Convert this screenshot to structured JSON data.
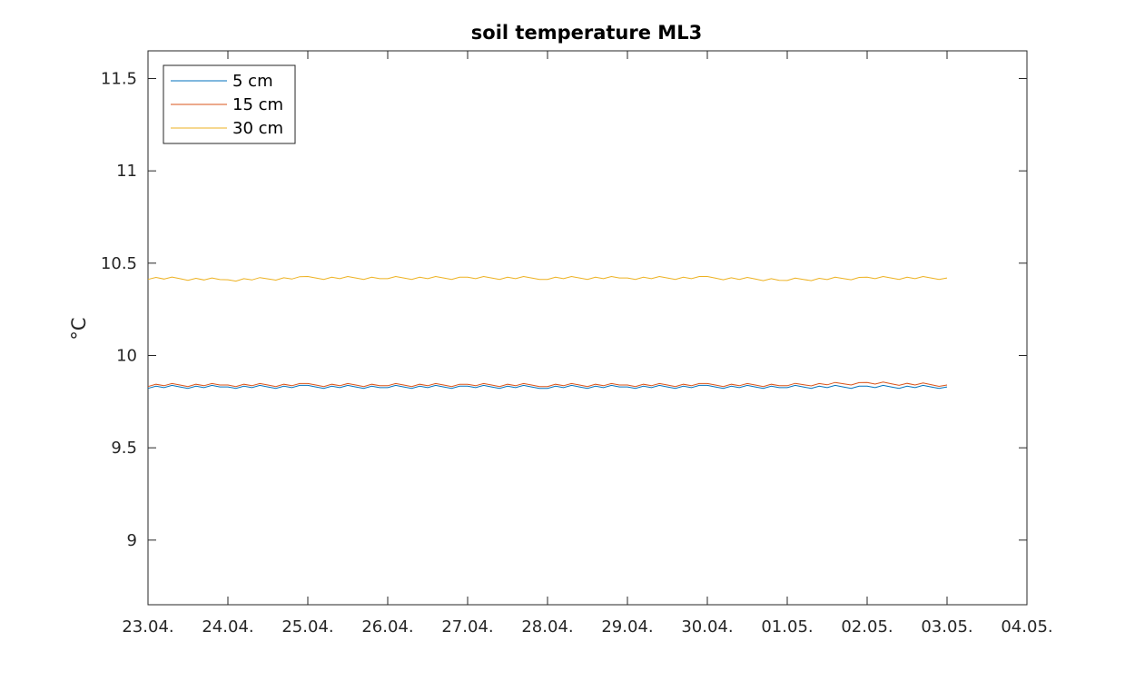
{
  "chart_data": {
    "type": "line",
    "title": "soil temperature ML3",
    "xlabel": "",
    "ylabel": "°C",
    "x_tick_labels": [
      "23.04.",
      "24.04.",
      "25.04.",
      "26.04.",
      "27.04.",
      "28.04.",
      "29.04.",
      "30.04.",
      "01.05.",
      "02.05.",
      "03.05.",
      "04.05."
    ],
    "y_tick_labels": [
      "9",
      "9.5",
      "10",
      "10.5",
      "11",
      "11.5"
    ],
    "y_ticks": [
      9,
      9.5,
      10,
      10.5,
      11,
      11.5
    ],
    "xlim": [
      "23.04.",
      "04.05."
    ],
    "ylim": [
      8.65,
      11.65
    ],
    "grid": false,
    "legend_position": "top-left",
    "series": [
      {
        "name": "5 cm",
        "color": "#0072bd",
        "x": [
          "23.04.",
          "24.04.",
          "25.04.",
          "26.04.",
          "27.04.",
          "28.04.",
          "29.04.",
          "30.04.",
          "01.05.",
          "02.05.",
          "03.05."
        ],
        "y": [
          9.83,
          9.83,
          9.83,
          9.83,
          9.83,
          9.83,
          9.83,
          9.83,
          9.83,
          9.83,
          9.83
        ]
      },
      {
        "name": "15 cm",
        "color": "#d95319",
        "x": [
          "23.04.",
          "24.04.",
          "25.04.",
          "26.04.",
          "27.04.",
          "28.04.",
          "29.04.",
          "30.04.",
          "01.05.",
          "02.05.",
          "03.05."
        ],
        "y": [
          9.84,
          9.84,
          9.84,
          9.84,
          9.84,
          9.84,
          9.84,
          9.84,
          9.84,
          9.85,
          9.84
        ]
      },
      {
        "name": "30 cm",
        "color": "#edb120",
        "x": [
          "23.04.",
          "24.04.",
          "25.04.",
          "26.04.",
          "27.04.",
          "28.04.",
          "29.04.",
          "30.04.",
          "01.05.",
          "02.05.",
          "03.05."
        ],
        "y": [
          10.42,
          10.41,
          10.42,
          10.42,
          10.42,
          10.42,
          10.42,
          10.42,
          10.41,
          10.42,
          10.42
        ]
      }
    ]
  }
}
